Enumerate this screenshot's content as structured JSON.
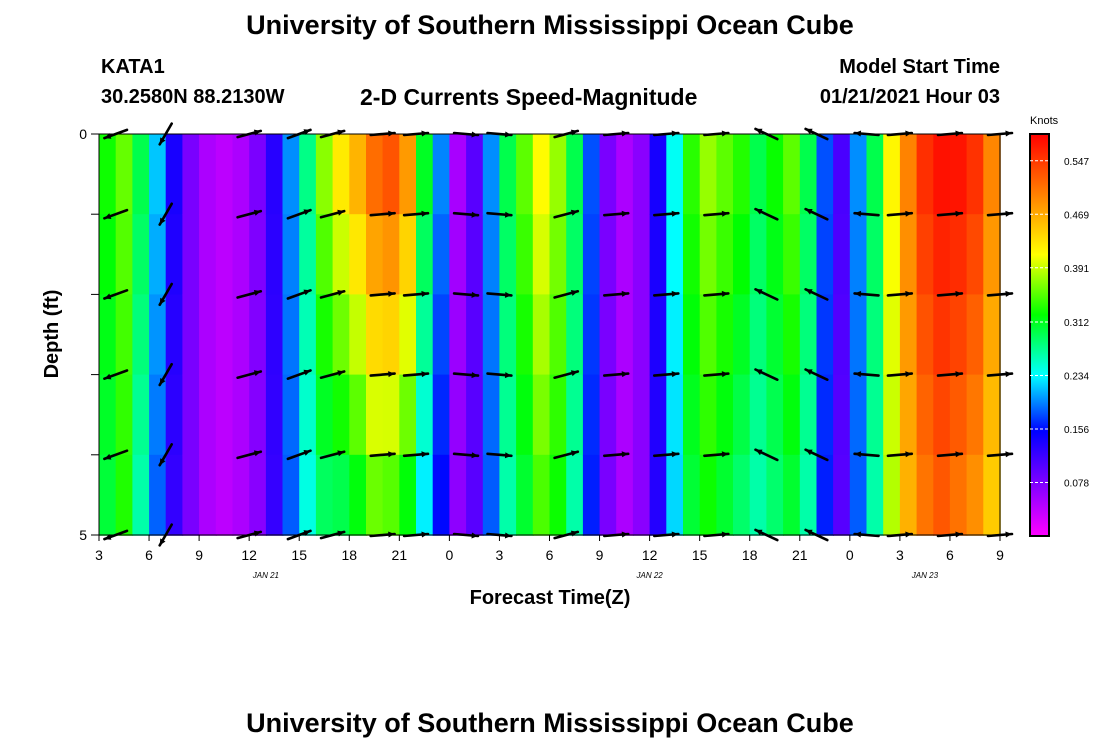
{
  "header": {
    "title": "University of Southern Mississippi Ocean Cube",
    "station": "KATA1",
    "coords": "30.2580N 88.2130W",
    "model_start_label": "Model Start Time",
    "model_start_value": "01/21/2021 Hour 03"
  },
  "footer": {
    "title": "University of Southern Mississippi Ocean Cube"
  },
  "chart_data": {
    "type": "heatmap",
    "title": "2-D Currents Speed-Magnitude",
    "xlabel": "Forecast Time(Z)",
    "ylabel": "Depth (ft)",
    "colorbar_label": "Knots",
    "colorbar_ticks": [
      "0.547",
      "0.469",
      "0.391",
      "0.312",
      "0.234",
      "0.156",
      "0.078"
    ],
    "colorbar_range": [
      0,
      0.586
    ],
    "x_range_hours": [
      0,
      54
    ],
    "x_tick_labels": [
      "3",
      "6",
      "9",
      "12",
      "15",
      "18",
      "21",
      "0",
      "3",
      "6",
      "9",
      "12",
      "15",
      "18",
      "21",
      "0",
      "3",
      "6",
      "9"
    ],
    "date_labels": [
      {
        "text": "JAN  21",
        "hour": 10
      },
      {
        "text": "JAN  22",
        "hour": 33
      },
      {
        "text": "JAN  23",
        "hour": 49.5
      }
    ],
    "y_range_ft": [
      0,
      5
    ],
    "y_tick_labels": [
      {
        "value": 0,
        "text": "0"
      },
      {
        "value": 5,
        "text": "5"
      }
    ],
    "depth_levels_ft": [
      0,
      1,
      2,
      3,
      4,
      5
    ],
    "speed_profile": {
      "hours": [
        0,
        1,
        2,
        3,
        4,
        5,
        6,
        7,
        8,
        9,
        10,
        11,
        12,
        13,
        14,
        15,
        16,
        17,
        18,
        19,
        20,
        21,
        22,
        23,
        24,
        25,
        26,
        27,
        28,
        29,
        30,
        31,
        32,
        33,
        34,
        35,
        36,
        37,
        38,
        39,
        40,
        41,
        42,
        43,
        44,
        45,
        46,
        47,
        48,
        49,
        50,
        51,
        52,
        53,
        54
      ],
      "surface_knots": [
        0.33,
        0.36,
        0.3,
        0.22,
        0.14,
        0.08,
        0.05,
        0.04,
        0.05,
        0.08,
        0.13,
        0.2,
        0.28,
        0.38,
        0.44,
        0.48,
        0.53,
        0.55,
        0.5,
        0.32,
        0.2,
        0.05,
        0.1,
        0.2,
        0.3,
        0.36,
        0.42,
        0.38,
        0.3,
        0.18,
        0.08,
        0.05,
        0.07,
        0.14,
        0.24,
        0.34,
        0.38,
        0.36,
        0.34,
        0.3,
        0.33,
        0.36,
        0.3,
        0.18,
        0.11,
        0.2,
        0.3,
        0.42,
        0.5,
        0.56,
        0.58,
        0.58,
        0.56,
        0.5,
        0.4
      ],
      "bottom_knots": [
        0.3,
        0.33,
        0.26,
        0.18,
        0.12,
        0.08,
        0.05,
        0.04,
        0.05,
        0.07,
        0.12,
        0.18,
        0.24,
        0.28,
        0.28,
        0.3,
        0.34,
        0.33,
        0.3,
        0.22,
        0.15,
        0.07,
        0.1,
        0.18,
        0.26,
        0.3,
        0.34,
        0.32,
        0.26,
        0.16,
        0.08,
        0.05,
        0.07,
        0.13,
        0.22,
        0.3,
        0.32,
        0.3,
        0.28,
        0.26,
        0.28,
        0.3,
        0.26,
        0.16,
        0.1,
        0.18,
        0.26,
        0.38,
        0.46,
        0.5,
        0.52,
        0.5,
        0.48,
        0.44,
        0.36
      ]
    },
    "vector_hours": [
      1,
      4,
      9,
      12,
      14,
      17,
      19,
      22,
      24,
      28,
      31,
      34,
      37,
      40,
      43,
      46,
      48,
      51,
      54
    ],
    "vector_angles_deg": [
      200,
      240,
      15,
      20,
      15,
      5,
      5,
      355,
      355,
      15,
      5,
      5,
      5,
      155,
      155,
      175,
      5,
      5,
      5
    ]
  }
}
